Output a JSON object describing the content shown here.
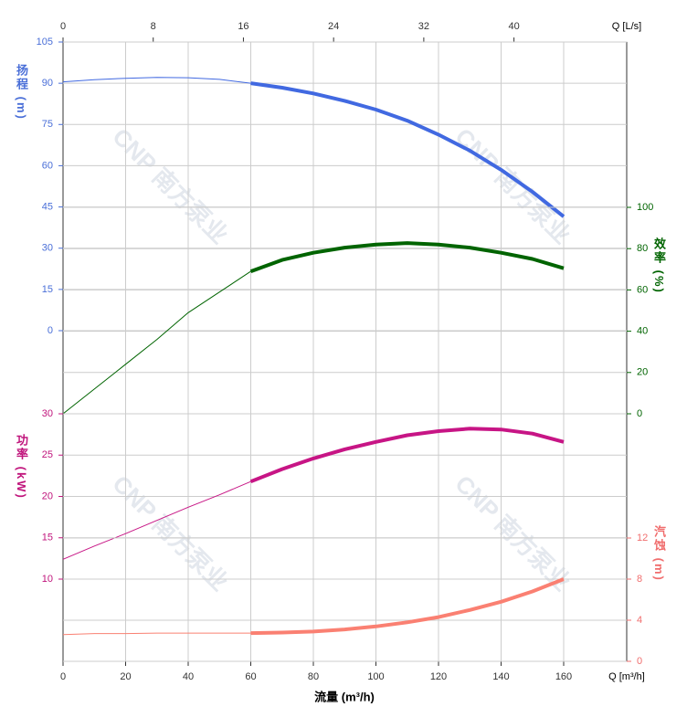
{
  "chart_data": {
    "type": "line",
    "x_label": "流量 (m³/h)",
    "x_unit_label": "Q [m³/h]",
    "x2_unit_label": "Q [L/s]",
    "watermark": "CNP 南方泵业",
    "xlim": [
      0,
      180
    ],
    "xticks": [
      0,
      20,
      40,
      60,
      80,
      100,
      120,
      140,
      160
    ],
    "x2lim": [
      0,
      50
    ],
    "x2ticks": [
      0,
      8,
      16,
      24,
      32,
      40
    ],
    "preferred_range": [
      60,
      160
    ],
    "grid": true,
    "x": [
      0,
      10,
      20,
      30,
      40,
      50,
      60,
      70,
      80,
      90,
      100,
      110,
      120,
      130,
      140,
      150,
      160
    ],
    "series": [
      {
        "name": "扬程 (m)",
        "color": "#4169e1",
        "side": "left",
        "ylim": [
          0,
          105
        ],
        "yticks": [
          0,
          15,
          30,
          45,
          60,
          75,
          90,
          105
        ],
        "values": [
          90.5,
          91.3,
          91.8,
          92.1,
          92,
          91.4,
          90,
          88.4,
          86.3,
          83.6,
          80.4,
          76.4,
          71.3,
          65.5,
          58.5,
          50.5,
          41.5
        ]
      },
      {
        "name": "效率 (%)",
        "color": "#006400",
        "side": "right",
        "ylim": [
          0,
          100
        ],
        "yticks": [
          0,
          20,
          40,
          60,
          80,
          100
        ],
        "values": [
          0,
          12,
          24,
          36,
          49,
          59,
          69,
          74.5,
          78,
          80.5,
          82,
          82.7,
          82,
          80.5,
          78,
          75,
          70.5
        ]
      },
      {
        "name": "功率 (kW)",
        "color": "#c71585",
        "side": "left",
        "ylim": [
          10,
          30
        ],
        "yticks": [
          10,
          15,
          20,
          25,
          30
        ],
        "values": [
          12.4,
          14,
          15.5,
          17.1,
          18.7,
          20.2,
          21.8,
          23.3,
          24.6,
          25.7,
          26.6,
          27.4,
          27.9,
          28.2,
          28.1,
          27.6,
          26.6
        ]
      },
      {
        "name": "汽蚀 (m)",
        "color": "#fa8072",
        "side": "right",
        "ylim": [
          0,
          12
        ],
        "yticks": [
          0,
          4,
          8,
          12
        ],
        "values": [
          2.6,
          2.7,
          2.7,
          2.75,
          2.75,
          2.75,
          2.75,
          2.8,
          2.9,
          3.1,
          3.4,
          3.8,
          4.3,
          5.0,
          5.8,
          6.8,
          8.0
        ]
      }
    ]
  }
}
